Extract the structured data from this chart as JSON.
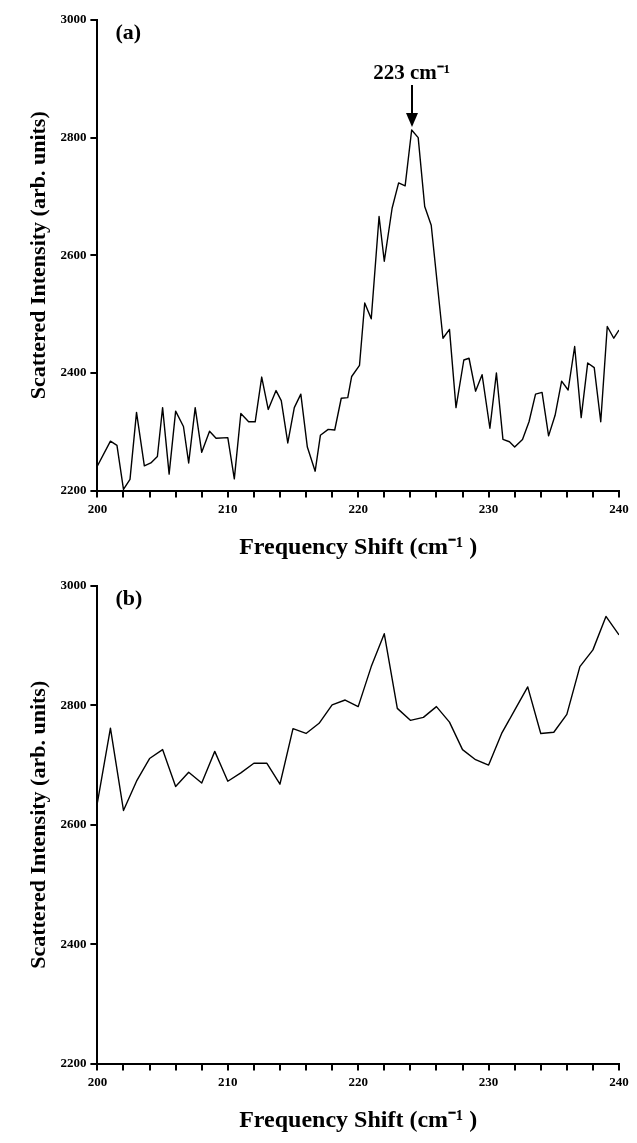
{
  "chart_data": [
    {
      "type": "line",
      "xlabel": "Frequency Shift (cm⁻¹ )",
      "ylabel": "Scattered Intensity (arb. units)",
      "marker": "none",
      "line_style": "solid",
      "grid": false,
      "annotations": [
        "(a)",
        {
          "text": "223 cm⁻¹",
          "x": 224.1,
          "y": 2813
        }
      ],
      "xlim": [
        200,
        240
      ],
      "ylim": [
        2200,
        3000
      ],
      "xticks": [
        200,
        {
          "value": 202,
          "label": null
        },
        {
          "value": 204,
          "label": null
        },
        {
          "value": 206,
          "label": null
        },
        {
          "value": 208,
          "label": null
        },
        210,
        {
          "value": 212,
          "label": null
        },
        {
          "value": 214,
          "label": null
        },
        {
          "value": 216,
          "label": null
        },
        {
          "value": 218,
          "label": null
        },
        220,
        {
          "value": 222,
          "label": null
        },
        {
          "value": 224,
          "label": null
        },
        {
          "value": 226,
          "label": null
        },
        {
          "value": 228,
          "label": null
        },
        230,
        {
          "value": 232,
          "label": null
        },
        {
          "value": 234,
          "label": null
        },
        {
          "value": 236,
          "label": null
        },
        {
          "value": 238,
          "label": null
        },
        240
      ],
      "yticks": [
        2200,
        2400,
        2600,
        2800,
        3000
      ],
      "series": [
        {
          "color": "#000000",
          "x": [
            200,
            201,
            201.5,
            202,
            202.5,
            203,
            203.6,
            204.1,
            204.6,
            205,
            205.5,
            206,
            206.6,
            207,
            207.5,
            208,
            208.6,
            209.1,
            210,
            210.5,
            211,
            211.6,
            212.1,
            212.6,
            213.1,
            213.7,
            214.1,
            214.6,
            215.1,
            215.6,
            216.1,
            216.7,
            217.1,
            217.7,
            218.2,
            218.7,
            219.2,
            219.5,
            220.1,
            220.5,
            221,
            221.6,
            222,
            222.6,
            223.1,
            223.6,
            224.1,
            224.6,
            225.1,
            225.6,
            226.1,
            226.5,
            227,
            227.5,
            228.1,
            228.5,
            229,
            229.5,
            230.1,
            230.6,
            231.1,
            231.6,
            232,
            232.6,
            233.1,
            233.6,
            234.1,
            234.6,
            235.1,
            235.6,
            236.1,
            236.6,
            237.1,
            237.6,
            238.1,
            238.6,
            239.1,
            239.6,
            240
          ],
          "values": [
            2242,
            2284,
            2277,
            2202,
            2219,
            2333,
            2242,
            2247,
            2258,
            2341,
            2228,
            2335,
            2309,
            2247,
            2341,
            2265,
            2301,
            2289,
            2290,
            2220,
            2331,
            2317,
            2317,
            2393,
            2338,
            2370,
            2353,
            2281,
            2341,
            2364,
            2274,
            2233,
            2294,
            2304,
            2303,
            2357,
            2358,
            2394,
            2413,
            2519,
            2492,
            2666,
            2590,
            2680,
            2723,
            2718,
            2813,
            2800,
            2683,
            2651,
            2544,
            2459,
            2474,
            2341,
            2422,
            2425,
            2369,
            2397,
            2306,
            2400,
            2287,
            2283,
            2274,
            2287,
            2317,
            2364,
            2367,
            2293,
            2328,
            2386,
            2371,
            2445,
            2324,
            2417,
            2409,
            2317,
            2479,
            2459,
            2473
          ]
        }
      ]
    },
    {
      "type": "line",
      "xlabel": "Frequency Shift (cm⁻¹ )",
      "ylabel": "Scattered Intensity (arb. units)",
      "marker": "none",
      "line_style": "solid",
      "grid": false,
      "annotations": [
        "(b)"
      ],
      "xlim": [
        200,
        240
      ],
      "ylim": [
        2200,
        3000
      ],
      "xticks": [
        200,
        {
          "value": 202,
          "label": null
        },
        {
          "value": 204,
          "label": null
        },
        {
          "value": 206,
          "label": null
        },
        {
          "value": 208,
          "label": null
        },
        210,
        {
          "value": 212,
          "label": null
        },
        {
          "value": 214,
          "label": null
        },
        {
          "value": 216,
          "label": null
        },
        {
          "value": 218,
          "label": null
        },
        220,
        {
          "value": 222,
          "label": null
        },
        {
          "value": 224,
          "label": null
        },
        {
          "value": 226,
          "label": null
        },
        {
          "value": 228,
          "label": null
        },
        230,
        {
          "value": 232,
          "label": null
        },
        {
          "value": 234,
          "label": null
        },
        {
          "value": 236,
          "label": null
        },
        {
          "value": 238,
          "label": null
        },
        240
      ],
      "yticks": [
        2200,
        2400,
        2600,
        2800,
        3000
      ],
      "series": [
        {
          "color": "#000000",
          "x": [
            200,
            201,
            202,
            203,
            204,
            205,
            206,
            207,
            208,
            209,
            210,
            211,
            212,
            213,
            214,
            215,
            216,
            217,
            218,
            219,
            220,
            221,
            222,
            223,
            224,
            225,
            226,
            227,
            228,
            229,
            230,
            231,
            232,
            233,
            234,
            235,
            236,
            237,
            238,
            239,
            240
          ],
          "values": [
            2637,
            2762,
            2624,
            2673,
            2711,
            2726,
            2664,
            2688,
            2670,
            2723,
            2673,
            2687,
            2703,
            2703,
            2668,
            2761,
            2753,
            2770,
            2801,
            2809,
            2798,
            2865,
            2920,
            2795,
            2775,
            2780,
            2798,
            2772,
            2726,
            2709,
            2700,
            2753,
            2792,
            2831,
            2753,
            2755,
            2785,
            2865,
            2893,
            2949,
            2918
          ]
        }
      ]
    }
  ]
}
